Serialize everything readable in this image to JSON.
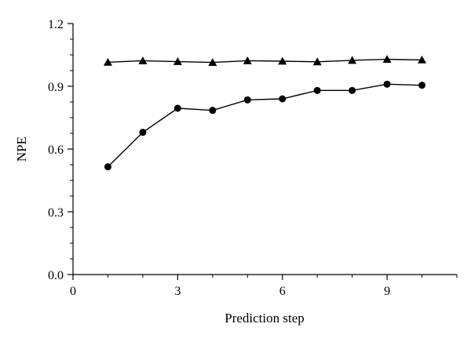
{
  "chart_data": {
    "type": "line",
    "title": "",
    "xlabel": "Prediction step",
    "ylabel": "NPE",
    "xlim": [
      0,
      11
    ],
    "ylim": [
      0,
      1.2
    ],
    "x_ticks": [
      0,
      3,
      6,
      9
    ],
    "x_tick_labels": [
      "0",
      "3",
      "6",
      "9"
    ],
    "y_ticks": [
      0,
      0.3,
      0.6,
      0.9,
      1.2
    ],
    "y_tick_labels": [
      "0.0",
      "0.3",
      "0.6",
      "0.9",
      "1.2"
    ],
    "grid": false,
    "legend": "none",
    "x": [
      1,
      2,
      3,
      4,
      5,
      6,
      7,
      8,
      9,
      10
    ],
    "series": [
      {
        "marker": "triangle",
        "color": "#000000",
        "values": [
          1.015,
          1.022,
          1.018,
          1.014,
          1.022,
          1.02,
          1.017,
          1.024,
          1.029,
          1.026
        ]
      },
      {
        "marker": "circle",
        "color": "#000000",
        "values": [
          0.515,
          0.68,
          0.795,
          0.785,
          0.835,
          0.84,
          0.88,
          0.88,
          0.91,
          0.905
        ]
      }
    ]
  }
}
